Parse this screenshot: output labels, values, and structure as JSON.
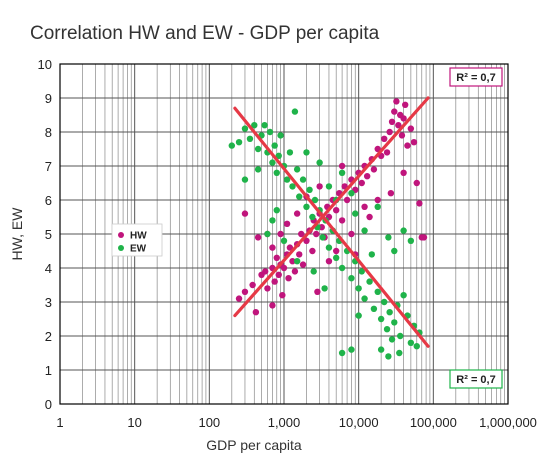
{
  "chart_data": {
    "type": "scatter",
    "title": "Correlation HW and EW - GDP per capita",
    "xlabel": "GDP per capita",
    "ylabel": "HW, EW",
    "xscale": "log",
    "xlim": [
      1,
      1000000
    ],
    "ylim": [
      0,
      10
    ],
    "xticks": [
      1,
      10,
      100,
      1000,
      10000,
      100000,
      1000000
    ],
    "xtick_labels": [
      "1",
      "10",
      "100",
      "1,000",
      "10,000",
      "100,000",
      "1,000,000"
    ],
    "yticks": [
      0,
      1,
      2,
      3,
      4,
      5,
      6,
      7,
      8,
      9,
      10
    ],
    "ytick_labels": [
      "0",
      "1",
      "2",
      "3",
      "4",
      "5",
      "6",
      "7",
      "8",
      "9",
      "10"
    ],
    "grid": true,
    "legend_position": "left",
    "series": [
      {
        "name": "HW",
        "color": "#c0157c",
        "points": [
          [
            250,
            3.1
          ],
          [
            300,
            3.3
          ],
          [
            380,
            3.5
          ],
          [
            420,
            2.7
          ],
          [
            500,
            3.8
          ],
          [
            560,
            3.9
          ],
          [
            600,
            3.4
          ],
          [
            700,
            4.0
          ],
          [
            750,
            3.6
          ],
          [
            800,
            4.3
          ],
          [
            850,
            3.8
          ],
          [
            900,
            4.1
          ],
          [
            950,
            3.2
          ],
          [
            1000,
            4.0
          ],
          [
            1100,
            4.4
          ],
          [
            1150,
            3.7
          ],
          [
            1200,
            4.6
          ],
          [
            1300,
            4.2
          ],
          [
            1400,
            3.9
          ],
          [
            1500,
            4.7
          ],
          [
            1600,
            4.4
          ],
          [
            1700,
            5.0
          ],
          [
            1800,
            4.1
          ],
          [
            2000,
            4.8
          ],
          [
            2200,
            5.1
          ],
          [
            2400,
            4.5
          ],
          [
            2500,
            5.4
          ],
          [
            2700,
            5.0
          ],
          [
            3000,
            5.6
          ],
          [
            3200,
            5.2
          ],
          [
            3500,
            4.9
          ],
          [
            3800,
            5.8
          ],
          [
            4000,
            5.5
          ],
          [
            4500,
            6.0
          ],
          [
            5000,
            5.7
          ],
          [
            5500,
            6.2
          ],
          [
            6000,
            5.4
          ],
          [
            6500,
            6.4
          ],
          [
            7000,
            6.0
          ],
          [
            8000,
            6.6
          ],
          [
            9000,
            6.3
          ],
          [
            10000,
            6.8
          ],
          [
            11000,
            6.5
          ],
          [
            12000,
            7.0
          ],
          [
            13000,
            6.7
          ],
          [
            15000,
            7.2
          ],
          [
            16000,
            6.9
          ],
          [
            18000,
            7.5
          ],
          [
            20000,
            7.3
          ],
          [
            22000,
            7.8
          ],
          [
            24000,
            7.4
          ],
          [
            26000,
            8.0
          ],
          [
            28000,
            8.3
          ],
          [
            30000,
            8.6
          ],
          [
            32000,
            8.9
          ],
          [
            34000,
            8.2
          ],
          [
            36000,
            8.5
          ],
          [
            38000,
            7.9
          ],
          [
            40000,
            8.4
          ],
          [
            42000,
            8.8
          ],
          [
            45000,
            7.6
          ],
          [
            50000,
            8.1
          ],
          [
            55000,
            7.7
          ],
          [
            60000,
            6.5
          ],
          [
            65000,
            5.9
          ],
          [
            70000,
            4.9
          ],
          [
            75000,
            4.9
          ],
          [
            1100,
            5.3
          ],
          [
            900,
            5.0
          ],
          [
            1500,
            5.6
          ],
          [
            2000,
            6.1
          ],
          [
            5000,
            4.5
          ],
          [
            8000,
            5.0
          ],
          [
            14000,
            5.5
          ],
          [
            4000,
            4.2
          ],
          [
            9000,
            4.4
          ],
          [
            2800,
            3.3
          ],
          [
            600,
            5.0
          ],
          [
            700,
            4.6
          ],
          [
            18000,
            6.0
          ],
          [
            300,
            5.6
          ],
          [
            450,
            4.9
          ],
          [
            3000,
            6.4
          ],
          [
            6000,
            7.0
          ],
          [
            40000,
            6.8
          ],
          [
            27000,
            6.2
          ],
          [
            12000,
            5.8
          ],
          [
            700,
            2.9
          ]
        ]
      },
      {
        "name": "EW",
        "color": "#1fb34a",
        "points": [
          [
            200,
            7.6
          ],
          [
            250,
            7.7
          ],
          [
            300,
            8.1
          ],
          [
            350,
            7.8
          ],
          [
            400,
            8.2
          ],
          [
            450,
            7.5
          ],
          [
            500,
            7.9
          ],
          [
            550,
            8.2
          ],
          [
            600,
            7.4
          ],
          [
            650,
            8.0
          ],
          [
            700,
            7.1
          ],
          [
            750,
            7.6
          ],
          [
            800,
            6.8
          ],
          [
            850,
            7.3
          ],
          [
            900,
            7.9
          ],
          [
            1000,
            7.0
          ],
          [
            1100,
            6.6
          ],
          [
            1200,
            7.4
          ],
          [
            1300,
            6.4
          ],
          [
            1400,
            8.6
          ],
          [
            1500,
            6.9
          ],
          [
            1600,
            6.1
          ],
          [
            1800,
            6.6
          ],
          [
            2000,
            5.8
          ],
          [
            2200,
            6.3
          ],
          [
            2400,
            5.5
          ],
          [
            2600,
            6.0
          ],
          [
            2800,
            5.2
          ],
          [
            3000,
            5.7
          ],
          [
            3300,
            4.9
          ],
          [
            3600,
            5.4
          ],
          [
            4000,
            4.6
          ],
          [
            4500,
            5.1
          ],
          [
            5000,
            4.3
          ],
          [
            5500,
            4.8
          ],
          [
            6000,
            4.0
          ],
          [
            7000,
            4.5
          ],
          [
            8000,
            3.7
          ],
          [
            9000,
            4.2
          ],
          [
            10000,
            3.4
          ],
          [
            11000,
            3.9
          ],
          [
            12000,
            3.1
          ],
          [
            14000,
            3.6
          ],
          [
            16000,
            2.8
          ],
          [
            18000,
            3.3
          ],
          [
            20000,
            2.5
          ],
          [
            22000,
            3.0
          ],
          [
            24000,
            2.2
          ],
          [
            26000,
            2.7
          ],
          [
            28000,
            1.9
          ],
          [
            30000,
            2.4
          ],
          [
            33000,
            2.9
          ],
          [
            36000,
            2.0
          ],
          [
            40000,
            3.2
          ],
          [
            45000,
            2.6
          ],
          [
            50000,
            1.8
          ],
          [
            55000,
            2.3
          ],
          [
            60000,
            1.7
          ],
          [
            65000,
            2.1
          ],
          [
            6000,
            1.5
          ],
          [
            8000,
            1.6
          ],
          [
            20000,
            1.6
          ],
          [
            25000,
            1.4
          ],
          [
            35000,
            1.5
          ],
          [
            4000,
            6.4
          ],
          [
            6000,
            6.8
          ],
          [
            9000,
            5.6
          ],
          [
            5000,
            6.0
          ],
          [
            12000,
            5.1
          ],
          [
            3000,
            7.1
          ],
          [
            2000,
            7.4
          ],
          [
            15000,
            4.4
          ],
          [
            1000,
            4.8
          ],
          [
            700,
            5.4
          ],
          [
            600,
            5.0
          ],
          [
            800,
            5.7
          ],
          [
            1500,
            4.2
          ],
          [
            25000,
            4.9
          ],
          [
            30000,
            4.5
          ],
          [
            40000,
            5.1
          ],
          [
            50000,
            4.8
          ],
          [
            18000,
            5.8
          ],
          [
            8000,
            6.2
          ],
          [
            10000,
            2.6
          ],
          [
            300,
            6.6
          ],
          [
            450,
            6.9
          ],
          [
            2500,
            3.9
          ],
          [
            3500,
            3.4
          ]
        ]
      }
    ],
    "trendlines": [
      {
        "series": "HW",
        "color": "#e63946",
        "from": [
          220,
          2.6
        ],
        "to": [
          85000,
          9.0
        ]
      },
      {
        "series": "EW",
        "color": "#e63946",
        "from": [
          220,
          8.7
        ],
        "to": [
          85000,
          1.7
        ]
      }
    ],
    "annotations": [
      {
        "text": "R² = 0,7",
        "series": "HW",
        "position": "top-right",
        "border_color": "#c0157c"
      },
      {
        "text": "R² = 0,7",
        "series": "EW",
        "position": "bottom-right",
        "border_color": "#1fb34a"
      }
    ]
  }
}
